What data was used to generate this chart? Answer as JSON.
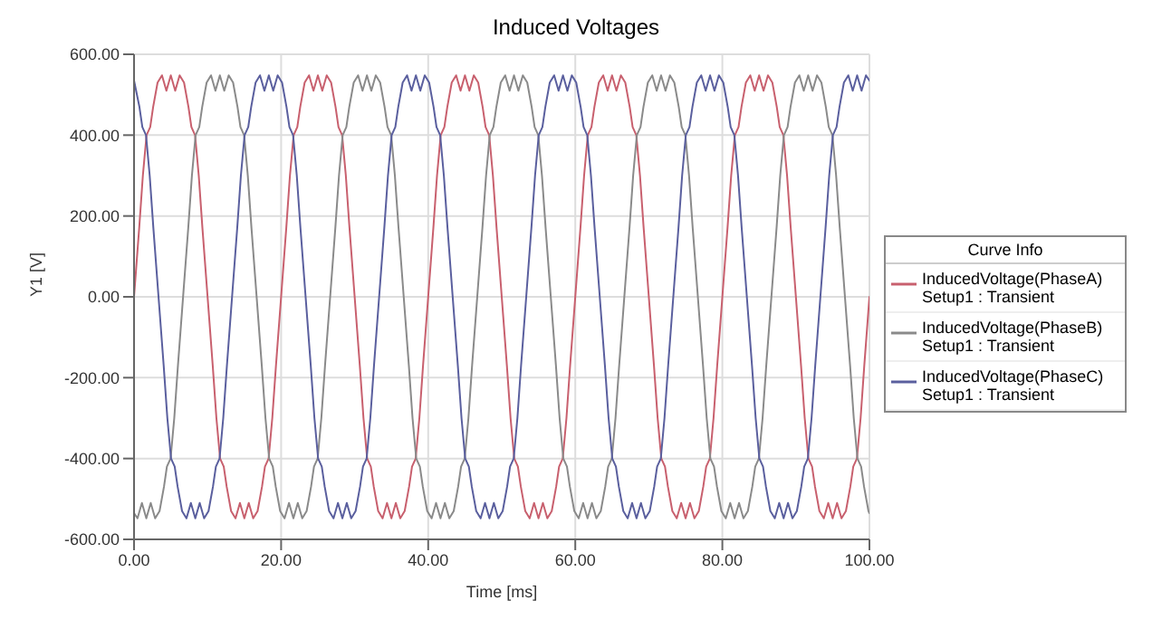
{
  "chart_data": {
    "type": "line",
    "title": "Induced Voltages",
    "xlabel": "Time [ms]",
    "ylabel": "Y1 [V]",
    "legend_title": "Curve Info",
    "xlim": [
      0,
      100
    ],
    "xticks": [
      {
        "value": 0,
        "label": "0.00"
      },
      {
        "value": 20,
        "label": "20.00"
      },
      {
        "value": 40,
        "label": "40.00"
      },
      {
        "value": 60,
        "label": "60.00"
      },
      {
        "value": 80,
        "label": "80.00"
      },
      {
        "value": 100,
        "label": "100.00"
      }
    ],
    "ylim": [
      -600,
      600
    ],
    "yticks": [
      {
        "value": -600,
        "label": "-600.00"
      },
      {
        "value": -400,
        "label": "-400.00"
      },
      {
        "value": -200,
        "label": "-200.00"
      },
      {
        "value": 0,
        "label": "0.00"
      },
      {
        "value": 200,
        "label": "200.00"
      },
      {
        "value": 400,
        "label": "400.00"
      },
      {
        "value": 600,
        "label": "600.00"
      }
    ],
    "grid": true,
    "legend": "right",
    "series": [
      {
        "name": "InducedVoltage(PhaseA) Setup1 : Transient",
        "color": "#c8606e",
        "x": [
          0,
          0.7,
          1.2,
          1.7,
          2.2,
          2.6,
          3.2,
          3.8,
          4.4,
          5,
          5.6,
          6.2,
          6.8,
          7.4,
          7.8,
          8.3,
          8.8,
          9.3,
          10,
          10.7,
          11.2,
          11.7,
          12.2,
          12.6,
          13.2,
          13.8,
          14.4,
          15,
          15.6,
          16.2,
          16.8,
          17.4,
          17.8,
          18.3,
          18.8,
          19.3,
          20,
          20.7,
          21.2,
          21.7,
          22.2,
          22.6,
          23.2,
          23.8,
          24.4,
          25,
          25.6,
          26.2,
          26.8,
          27.4,
          27.8,
          28.3,
          28.8,
          29.3,
          30,
          30.7,
          31.2,
          31.7,
          32.2,
          32.6,
          33.2,
          33.8,
          34.4,
          35,
          35.6,
          36.2,
          36.8,
          37.4,
          37.8,
          38.3,
          38.8,
          39.3,
          40,
          40.7,
          41.2,
          41.7,
          42.2,
          42.6,
          43.2,
          43.8,
          44.4,
          45,
          45.6,
          46.2,
          46.8,
          47.4,
          47.8,
          48.3,
          48.8,
          49.3,
          50,
          50.7,
          51.2,
          51.7,
          52.2,
          52.6,
          53.2,
          53.8,
          54.4,
          55,
          55.6,
          56.2,
          56.8,
          57.4,
          57.8,
          58.3,
          58.8,
          59.3,
          60,
          60.7,
          61.2,
          61.7,
          62.2,
          62.6,
          63.2,
          63.8,
          64.4,
          65,
          65.6,
          66.2,
          66.8,
          67.4,
          67.8,
          68.3,
          68.8,
          69.3,
          70,
          70.7,
          71.2,
          71.7,
          72.2,
          72.6,
          73.2,
          73.8,
          74.4,
          75,
          75.6,
          76.2,
          76.8,
          77.4,
          77.8,
          78.3,
          78.8,
          79.3,
          80,
          80.7,
          81.2,
          81.7,
          82.2,
          82.6,
          83.2,
          83.8,
          84.4,
          85,
          85.6,
          86.2,
          86.8,
          87.4,
          87.8,
          88.3,
          88.8,
          89.3,
          90,
          90.7,
          91.2,
          91.7,
          92.2,
          92.6,
          93.2,
          93.8,
          94.4,
          95,
          95.6,
          96.2,
          96.8,
          97.4,
          97.8,
          98.3,
          98.8,
          99.3,
          100
        ],
        "values": [
          0,
          170,
          300,
          400,
          420,
          470,
          530,
          548,
          510,
          548,
          510,
          548,
          530,
          470,
          420,
          400,
          300,
          170,
          0,
          -170,
          -300,
          -400,
          -420,
          -470,
          -530,
          -548,
          -510,
          -548,
          -510,
          -548,
          -530,
          -470,
          -420,
          -400,
          -300,
          -170,
          0,
          170,
          300,
          400,
          420,
          470,
          530,
          548,
          510,
          548,
          510,
          548,
          530,
          470,
          420,
          400,
          300,
          170,
          0,
          -170,
          -300,
          -400,
          -420,
          -470,
          -530,
          -548,
          -510,
          -548,
          -510,
          -548,
          -530,
          -470,
          -420,
          -400,
          -300,
          -170,
          0,
          170,
          300,
          400,
          420,
          470,
          530,
          548,
          510,
          548,
          510,
          548,
          530,
          470,
          420,
          400,
          300,
          170,
          0,
          -170,
          -300,
          -400,
          -420,
          -470,
          -530,
          -548,
          -510,
          -548,
          -510,
          -548,
          -530,
          -470,
          -420,
          -400,
          -300,
          -170,
          0,
          170,
          300,
          400,
          420,
          470,
          530,
          548,
          510,
          548,
          510,
          548,
          530,
          470,
          420,
          400,
          300,
          170,
          0,
          -170,
          -300,
          -400,
          -420,
          -470,
          -530,
          -548,
          -510,
          -548,
          -510,
          -548,
          -530,
          -470,
          -420,
          -400,
          -300,
          -170,
          0,
          170,
          300,
          400,
          420,
          470,
          530,
          548,
          510,
          548,
          510,
          548,
          530,
          470,
          420,
          400,
          300,
          170,
          0,
          -170,
          -300,
          -400,
          -420,
          -470,
          -530,
          -548,
          -510,
          -548,
          -510,
          -548,
          -530,
          -470,
          -420,
          -400,
          -300,
          -170,
          0
        ]
      },
      {
        "name": "InducedVoltage(PhaseB) Setup1 : Transient",
        "color": "#8a8a8a",
        "x": [
          0,
          0.47,
          1.07,
          1.67,
          2.27,
          2.87,
          3.47,
          4.07,
          4.47,
          4.97,
          5.47,
          5.97,
          6.67,
          7.37,
          7.87,
          8.37,
          8.87,
          9.27,
          9.87,
          10.47,
          11.07,
          11.67,
          12.27,
          12.87,
          13.47,
          14.07,
          14.47,
          14.97,
          15.47,
          15.97,
          16.67,
          17.37,
          17.87,
          18.37,
          18.87,
          19.27,
          19.87,
          20.47,
          21.07,
          21.67,
          22.27,
          22.87,
          23.47,
          24.07,
          24.47,
          24.97,
          25.47,
          25.97,
          26.67,
          27.37,
          27.87,
          28.37,
          28.87,
          29.27,
          29.87,
          30.47,
          31.07,
          31.67,
          32.27,
          32.87,
          33.47,
          34.07,
          34.47,
          34.97,
          35.47,
          35.97,
          36.67,
          37.37,
          37.87,
          38.37,
          38.87,
          39.27,
          39.87,
          40.47,
          41.07,
          41.67,
          42.27,
          42.87,
          43.47,
          44.07,
          44.47,
          44.97,
          45.47,
          45.97,
          46.67,
          47.37,
          47.87,
          48.37,
          48.87,
          49.27,
          49.87,
          50.47,
          51.07,
          51.67,
          52.27,
          52.87,
          53.47,
          54.07,
          54.47,
          54.97,
          55.47,
          55.97,
          56.67,
          57.37,
          57.87,
          58.37,
          58.87,
          59.27,
          59.87,
          60.47,
          61.07,
          61.67,
          62.27,
          62.87,
          63.47,
          64.07,
          64.47,
          64.97,
          65.47,
          65.97,
          66.67,
          67.37,
          67.87,
          68.37,
          68.87,
          69.27,
          69.87,
          70.47,
          71.07,
          71.67,
          72.27,
          72.87,
          73.47,
          74.07,
          74.47,
          74.97,
          75.47,
          75.97,
          76.67,
          77.37,
          77.87,
          78.37,
          78.87,
          79.27,
          79.87,
          80.47,
          81.07,
          81.67,
          82.27,
          82.87,
          83.47,
          84.07,
          84.47,
          84.97,
          85.47,
          85.97,
          86.67,
          87.37,
          87.87,
          88.37,
          88.87,
          89.27,
          89.87,
          90.47,
          91.07,
          91.67,
          92.27,
          92.87,
          93.47,
          94.07,
          94.47,
          94.97,
          95.47,
          95.97,
          96.67,
          97.37,
          97.87,
          98.37,
          98.87,
          99.27,
          99.87,
          100
        ],
        "values": [
          -535,
          -548,
          -510,
          -548,
          -510,
          -548,
          -530,
          -470,
          -420,
          -400,
          -300,
          -170,
          0,
          170,
          300,
          400,
          420,
          470,
          530,
          548,
          510,
          548,
          510,
          548,
          530,
          470,
          420,
          400,
          300,
          170,
          0,
          -170,
          -300,
          -400,
          -420,
          -470,
          -530,
          -548,
          -510,
          -548,
          -510,
          -548,
          -530,
          -470,
          -420,
          -400,
          -300,
          -170,
          0,
          170,
          300,
          400,
          420,
          470,
          530,
          548,
          510,
          548,
          510,
          548,
          530,
          470,
          420,
          400,
          300,
          170,
          0,
          -170,
          -300,
          -400,
          -420,
          -470,
          -530,
          -548,
          -510,
          -548,
          -510,
          -548,
          -530,
          -470,
          -420,
          -400,
          -300,
          -170,
          0,
          170,
          300,
          400,
          420,
          470,
          530,
          548,
          510,
          548,
          510,
          548,
          530,
          470,
          420,
          400,
          300,
          170,
          0,
          -170,
          -300,
          -400,
          -420,
          -470,
          -530,
          -548,
          -510,
          -548,
          -510,
          -548,
          -530,
          -470,
          -420,
          -400,
          -300,
          -170,
          0,
          170,
          300,
          400,
          420,
          470,
          530,
          548,
          510,
          548,
          510,
          548,
          530,
          470,
          420,
          400,
          300,
          170,
          0,
          -170,
          -300,
          -400,
          -420,
          -470,
          -530,
          -548,
          -510,
          -548,
          -510,
          -548,
          -530,
          -470,
          -420,
          -400,
          -300,
          -170,
          0,
          170,
          300,
          400,
          420,
          470,
          530,
          548,
          510,
          548,
          510,
          548,
          530,
          470,
          420,
          400,
          300,
          170,
          0,
          -170,
          -300,
          -400,
          -420,
          -470,
          -530,
          -535
        ]
      },
      {
        "name": "InducedVoltage(PhaseC) Setup1 : Transient",
        "color": "#5a5f9e",
        "x": [
          0,
          0.73,
          1.13,
          1.63,
          2.13,
          2.63,
          3.33,
          4.03,
          4.53,
          5.03,
          5.53,
          5.93,
          6.53,
          7.13,
          7.73,
          8.33,
          8.93,
          9.53,
          10.13,
          10.73,
          11.13,
          11.63,
          12.13,
          12.63,
          13.33,
          14.03,
          14.53,
          15.03,
          15.53,
          15.93,
          16.53,
          17.13,
          17.73,
          18.33,
          18.93,
          19.53,
          20.13,
          20.73,
          21.13,
          21.63,
          22.13,
          22.63,
          23.33,
          24.03,
          24.53,
          25.03,
          25.53,
          25.93,
          26.53,
          27.13,
          27.73,
          28.33,
          28.93,
          29.53,
          30.13,
          30.73,
          31.13,
          31.63,
          32.13,
          32.63,
          33.33,
          34.03,
          34.53,
          35.03,
          35.53,
          35.93,
          36.53,
          37.13,
          37.73,
          38.33,
          38.93,
          39.53,
          40.13,
          40.73,
          41.13,
          41.63,
          42.13,
          42.63,
          43.33,
          44.03,
          44.53,
          45.03,
          45.53,
          45.93,
          46.53,
          47.13,
          47.73,
          48.33,
          48.93,
          49.53,
          50.13,
          50.73,
          51.13,
          51.63,
          52.13,
          52.63,
          53.33,
          54.03,
          54.53,
          55.03,
          55.53,
          55.93,
          56.53,
          57.13,
          57.73,
          58.33,
          58.93,
          59.53,
          60.13,
          60.73,
          61.13,
          61.63,
          62.13,
          62.63,
          63.33,
          64.03,
          64.53,
          65.03,
          65.53,
          65.93,
          66.53,
          67.13,
          67.73,
          68.33,
          68.93,
          69.53,
          70.13,
          70.73,
          71.13,
          71.63,
          72.13,
          72.63,
          73.33,
          74.03,
          74.53,
          75.03,
          75.53,
          75.93,
          76.53,
          77.13,
          77.73,
          78.33,
          78.93,
          79.53,
          80.13,
          80.73,
          81.13,
          81.63,
          82.13,
          82.63,
          83.33,
          84.03,
          84.53,
          85.03,
          85.53,
          85.93,
          86.53,
          87.13,
          87.73,
          88.33,
          88.93,
          89.53,
          90.13,
          90.73,
          91.13,
          91.63,
          92.13,
          92.63,
          93.33,
          94.03,
          94.53,
          95.03,
          95.53,
          95.93,
          96.53,
          97.13,
          97.73,
          98.33,
          98.93,
          99.53,
          100
        ],
        "values": [
          535,
          470,
          420,
          400,
          300,
          170,
          0,
          -170,
          -300,
          -400,
          -420,
          -470,
          -530,
          -548,
          -510,
          -548,
          -510,
          -548,
          -530,
          -470,
          -420,
          -400,
          -300,
          -170,
          0,
          170,
          300,
          400,
          420,
          470,
          530,
          548,
          510,
          548,
          510,
          548,
          530,
          470,
          420,
          400,
          300,
          170,
          0,
          -170,
          -300,
          -400,
          -420,
          -470,
          -530,
          -548,
          -510,
          -548,
          -510,
          -548,
          -530,
          -470,
          -420,
          -400,
          -300,
          -170,
          0,
          170,
          300,
          400,
          420,
          470,
          530,
          548,
          510,
          548,
          510,
          548,
          530,
          470,
          420,
          400,
          300,
          170,
          0,
          -170,
          -300,
          -400,
          -420,
          -470,
          -530,
          -548,
          -510,
          -548,
          -510,
          -548,
          -530,
          -470,
          -420,
          -400,
          -300,
          -170,
          0,
          170,
          300,
          400,
          420,
          470,
          530,
          548,
          510,
          548,
          510,
          548,
          530,
          470,
          420,
          400,
          300,
          170,
          0,
          -170,
          -300,
          -400,
          -420,
          -470,
          -530,
          -548,
          -510,
          -548,
          -510,
          -548,
          -530,
          -470,
          -420,
          -400,
          -300,
          -170,
          0,
          170,
          300,
          400,
          420,
          470,
          530,
          548,
          510,
          548,
          510,
          548,
          530,
          470,
          420,
          400,
          300,
          170,
          0,
          -170,
          -300,
          -400,
          -420,
          -470,
          -530,
          -548,
          -510,
          -548,
          -510,
          -548,
          -530,
          -470,
          -420,
          -400,
          -300,
          -170,
          0,
          170,
          300,
          400,
          420,
          470,
          530,
          548,
          510,
          548,
          510,
          548,
          535
        ]
      }
    ]
  }
}
